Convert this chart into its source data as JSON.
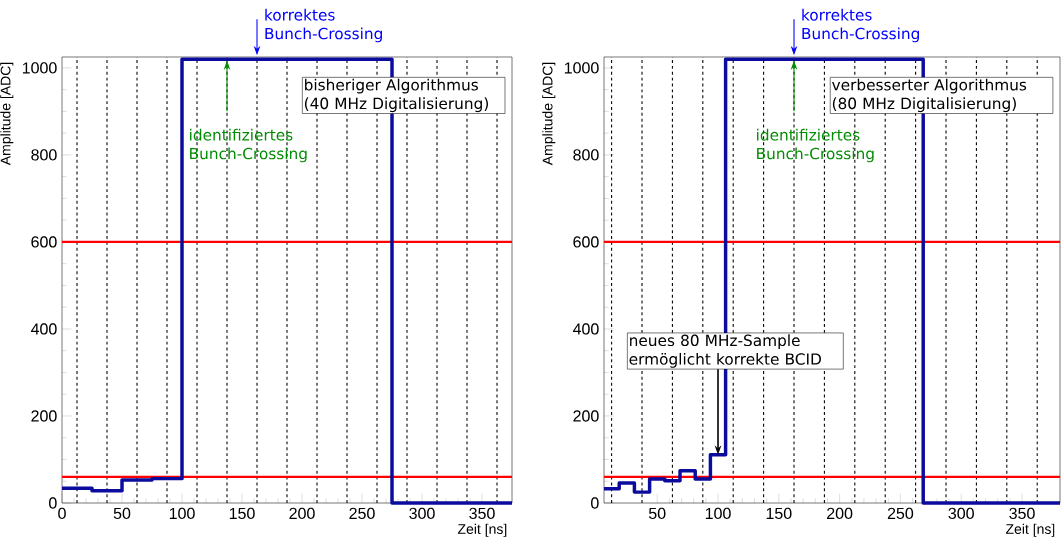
{
  "chart_data": [
    {
      "type": "step",
      "xlabel": "Zeit [ns]",
      "ylabel": "Amplitude [ADC]",
      "x": [
        0,
        25,
        50,
        75,
        100,
        275,
        375
      ],
      "series": [
        {
          "color": "#0b0b9e",
          "values": [
            34,
            28,
            53,
            56,
            1020,
            0,
            0
          ]
        }
      ],
      "xlim": [
        0,
        375
      ],
      "ylim": [
        0,
        1025
      ],
      "xticks": [
        0,
        50,
        100,
        150,
        200,
        250,
        300,
        350
      ],
      "yticks": [
        0,
        200,
        400,
        600,
        800,
        1000
      ],
      "marker": "none",
      "ref_lines": [
        {
          "axis": "x",
          "value": 12.5,
          "color": "#000000",
          "line_style": "dashed"
        },
        {
          "axis": "x",
          "value": 37.5,
          "color": "#000000",
          "line_style": "dashed"
        },
        {
          "axis": "x",
          "value": 62.5,
          "color": "#000000",
          "line_style": "dashed"
        },
        {
          "axis": "x",
          "value": 87.5,
          "color": "#000000",
          "line_style": "dashed"
        },
        {
          "axis": "x",
          "value": 112.5,
          "color": "#000000",
          "line_style": "dashed"
        },
        {
          "axis": "x",
          "value": 137.5,
          "color": "#000000",
          "line_style": "dashed"
        },
        {
          "axis": "x",
          "value": 162.5,
          "color": "#000000",
          "line_style": "dashed"
        },
        {
          "axis": "x",
          "value": 187.5,
          "color": "#000000",
          "line_style": "dashed"
        },
        {
          "axis": "x",
          "value": 212.5,
          "color": "#000000",
          "line_style": "dashed"
        },
        {
          "axis": "x",
          "value": 237.5,
          "color": "#000000",
          "line_style": "dashed"
        },
        {
          "axis": "x",
          "value": 262.5,
          "color": "#000000",
          "line_style": "dashed"
        },
        {
          "axis": "x",
          "value": 287.5,
          "color": "#000000",
          "line_style": "dashed"
        },
        {
          "axis": "x",
          "value": 312.5,
          "color": "#000000",
          "line_style": "dashed"
        },
        {
          "axis": "x",
          "value": 337.5,
          "color": "#000000",
          "line_style": "dashed"
        },
        {
          "axis": "x",
          "value": 362.5,
          "color": "#000000",
          "line_style": "dashed"
        },
        {
          "axis": "y",
          "value": 60,
          "color": "#ff0000",
          "line_style": "solid"
        },
        {
          "axis": "y",
          "value": 600,
          "color": "#ff0000",
          "line_style": "solid"
        }
      ],
      "annotations": [
        {
          "text": "korrektes Bunch-Crossing",
          "x": 162.5,
          "y": 1020
        },
        {
          "text": "identifiziertes Bunch-Crossing",
          "x": 137.5,
          "y": 1020
        },
        "bisheriger Algorithmus (40 MHz Digitalisierung)"
      ]
    },
    {
      "type": "step",
      "xlabel": "Zeit [ns]",
      "ylabel": "Amplitude [ADC]",
      "x": [
        6.25,
        18.75,
        31.25,
        43.75,
        56.25,
        68.75,
        81.25,
        93.75,
        106.25,
        268.75,
        381.25
      ],
      "series": [
        {
          "color": "#0b0b9e",
          "values": [
            33,
            46,
            25,
            55,
            51,
            74,
            55,
            111,
            1020,
            0,
            0
          ]
        }
      ],
      "xlim": [
        6.25,
        381.25
      ],
      "ylim": [
        0,
        1025
      ],
      "xticks": [
        50,
        100,
        150,
        200,
        250,
        300,
        350
      ],
      "yticks": [
        0,
        200,
        400,
        600,
        800,
        1000
      ],
      "marker": "none",
      "ref_lines": [
        {
          "axis": "x",
          "value": 12.5,
          "color": "#000000",
          "line_style": "dashed"
        },
        {
          "axis": "x",
          "value": 37.5,
          "color": "#000000",
          "line_style": "dashed"
        },
        {
          "axis": "x",
          "value": 62.5,
          "color": "#000000",
          "line_style": "dashed"
        },
        {
          "axis": "x",
          "value": 87.5,
          "color": "#000000",
          "line_style": "dashed"
        },
        {
          "axis": "x",
          "value": 112.5,
          "color": "#000000",
          "line_style": "dashed"
        },
        {
          "axis": "x",
          "value": 137.5,
          "color": "#000000",
          "line_style": "dashed"
        },
        {
          "axis": "x",
          "value": 162.5,
          "color": "#000000",
          "line_style": "dashed"
        },
        {
          "axis": "x",
          "value": 187.5,
          "color": "#000000",
          "line_style": "dashed"
        },
        {
          "axis": "x",
          "value": 212.5,
          "color": "#000000",
          "line_style": "dashed"
        },
        {
          "axis": "x",
          "value": 237.5,
          "color": "#000000",
          "line_style": "dashed"
        },
        {
          "axis": "x",
          "value": 262.5,
          "color": "#000000",
          "line_style": "dashed"
        },
        {
          "axis": "x",
          "value": 287.5,
          "color": "#000000",
          "line_style": "dashed"
        },
        {
          "axis": "x",
          "value": 312.5,
          "color": "#000000",
          "line_style": "dashed"
        },
        {
          "axis": "x",
          "value": 337.5,
          "color": "#000000",
          "line_style": "dashed"
        },
        {
          "axis": "x",
          "value": 362.5,
          "color": "#000000",
          "line_style": "dashed"
        },
        {
          "axis": "y",
          "value": 60,
          "color": "#ff0000",
          "line_style": "solid"
        },
        {
          "axis": "y",
          "value": 600,
          "color": "#ff0000",
          "line_style": "solid"
        }
      ],
      "annotations": [
        {
          "text": "korrektes Bunch-Crossing",
          "x": 162.5,
          "y": 1020
        },
        {
          "text": "identifiziertes Bunch-Crossing",
          "x": 162.5,
          "y": 1020
        },
        {
          "text": "neues 80 MHz-Sample ermöglicht korrekte BCID",
          "x": 100,
          "y": 111
        },
        "verbesserter Algorithmus (80 MHz Digitalisierung)"
      ]
    }
  ]
}
